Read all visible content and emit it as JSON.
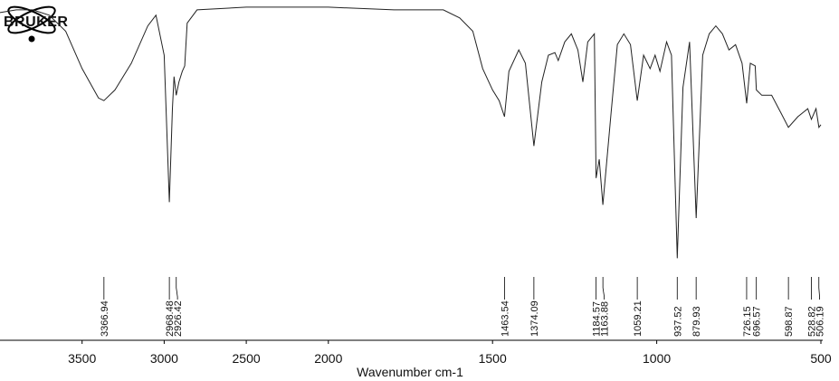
{
  "chart_data": {
    "type": "line",
    "logo": "BRUKER",
    "xlabel": "Wavenumber cm-1",
    "xlim": [
      4000,
      500
    ],
    "x_break": 2000,
    "ylim": [
      0,
      100
    ],
    "xticks": [
      3500,
      3000,
      2500,
      2000,
      1500,
      1000,
      500
    ],
    "x": [
      4000,
      3900,
      3800,
      3700,
      3600,
      3500,
      3400,
      3366.94,
      3300,
      3200,
      3100,
      3050,
      3000,
      2968.48,
      2950,
      2940,
      2926.42,
      2910,
      2890,
      2875,
      2860,
      2800,
      2500,
      2000,
      1800,
      1650,
      1600,
      1560,
      1530,
      1500,
      1480,
      1463.54,
      1450,
      1420,
      1400,
      1374.09,
      1350,
      1330,
      1310,
      1300,
      1280,
      1260,
      1240,
      1225,
      1210,
      1190,
      1184.57,
      1175,
      1163.88,
      1140,
      1120,
      1100,
      1080,
      1059.21,
      1040,
      1020,
      1005,
      990,
      970,
      955,
      937.52,
      920,
      900,
      879.93,
      860,
      840,
      820,
      800,
      780,
      760,
      740,
      726.15,
      715,
      700,
      696.57,
      680,
      650,
      620,
      598.87,
      570,
      540,
      528.82,
      515,
      506.19,
      500
    ],
    "series": [
      {
        "color": "#222222",
        "values": [
          97,
          98,
          98,
          96,
          90,
          76,
          65,
          64,
          68,
          78,
          92,
          96,
          81,
          26,
          61,
          73,
          66,
          71,
          75,
          77,
          93,
          98,
          99,
          99,
          98,
          98,
          95,
          90,
          76,
          68,
          64,
          58,
          75,
          83,
          78,
          47,
          71,
          81,
          82,
          79,
          86,
          89,
          83,
          71,
          86,
          89,
          35,
          42,
          25,
          58,
          85,
          89,
          85,
          64,
          81,
          76,
          81,
          75,
          86,
          81,
          5,
          69,
          86,
          20,
          81,
          89,
          92,
          89,
          83,
          85,
          78,
          63,
          78,
          77,
          68,
          66,
          66,
          59,
          54,
          58,
          61,
          57,
          61,
          54,
          55
        ]
      }
    ],
    "peaks": [
      3366.94,
      2968.48,
      2926.42,
      1463.54,
      1374.09,
      1184.57,
      1163.88,
      1059.21,
      937.52,
      879.93,
      726.15,
      696.57,
      598.87,
      528.82,
      506.19
    ]
  }
}
